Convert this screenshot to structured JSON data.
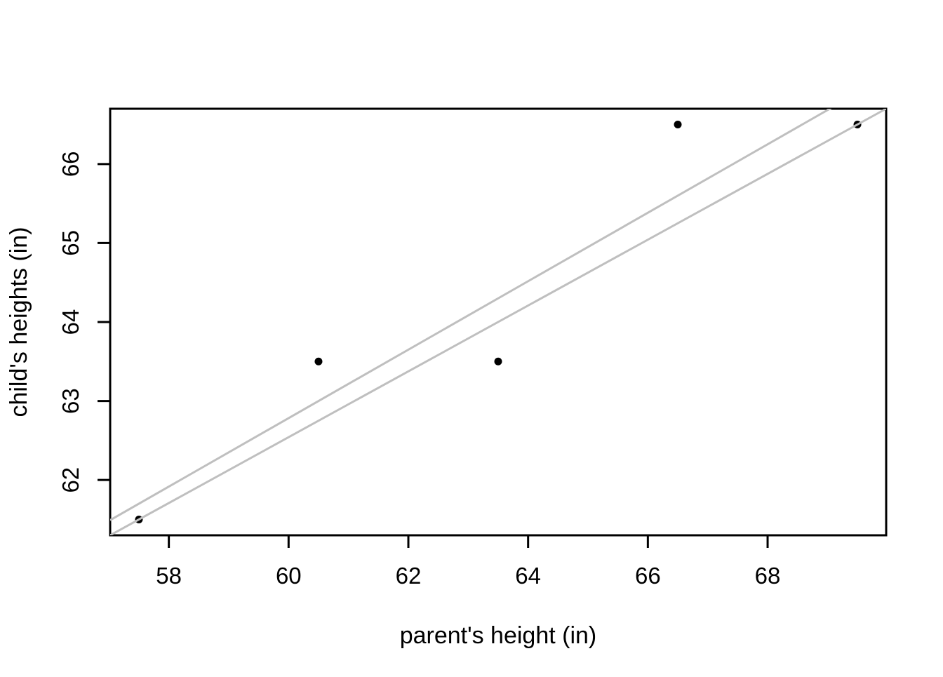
{
  "chart_data": {
    "type": "scatter",
    "title": "",
    "xlabel": "parent's height (in)",
    "ylabel": "child's heights (in)",
    "points": {
      "x": [
        57.5,
        60.5,
        63.5,
        66.5,
        69.5
      ],
      "y": [
        61.5,
        63.5,
        63.5,
        66.5,
        66.5
      ]
    },
    "xticks": [
      58,
      60,
      62,
      64,
      66,
      68
    ],
    "yticks": [
      62,
      63,
      64,
      65,
      66
    ],
    "xlim": [
      57.02,
      69.98
    ],
    "ylim": [
      61.3,
      66.7
    ],
    "grid": false,
    "legend": null,
    "lines": [
      {
        "name": "regression-line",
        "slope": 0.43333,
        "intercept": 36.78333
      },
      {
        "name": "extreme-points-line",
        "slope": 0.41667,
        "intercept": 37.54167
      }
    ],
    "point_radius": 5.5,
    "colors": {
      "points": "#000000",
      "fit_lines": "#bfbfbf",
      "axis": "#000000",
      "background": "#ffffff"
    }
  }
}
